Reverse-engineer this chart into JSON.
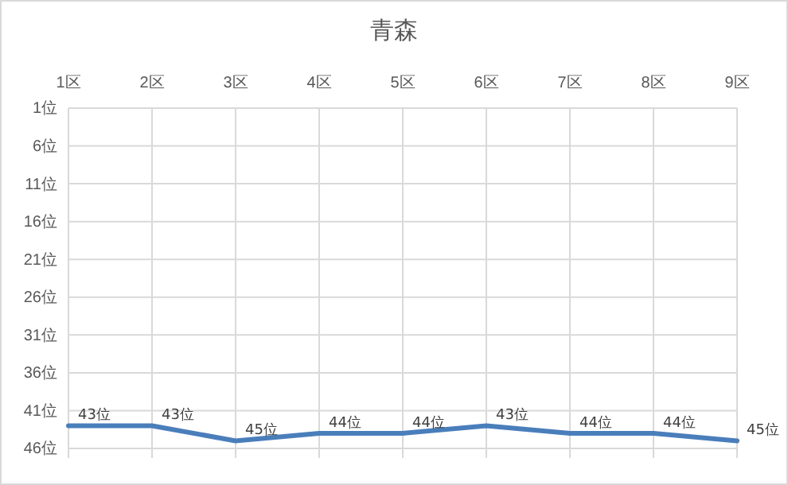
{
  "chart_data": {
    "type": "line",
    "title": "青森",
    "categories": [
      "1区",
      "2区",
      "3区",
      "4区",
      "5区",
      "6区",
      "7区",
      "8区",
      "9区"
    ],
    "series": [
      {
        "color": "#4a7ebb",
        "values": [
          43,
          43,
          45,
          44,
          44,
          43,
          44,
          44,
          45
        ],
        "value_labels": [
          "43位",
          "43位",
          "45位",
          "44位",
          "44位",
          "43位",
          "44位",
          "44位",
          "45位"
        ]
      }
    ],
    "ylim": [
      46,
      1
    ],
    "yticks": [
      {
        "value": 1,
        "label": "1位"
      },
      {
        "value": 6,
        "label": "6位"
      },
      {
        "value": 11,
        "label": "11位"
      },
      {
        "value": 16,
        "label": "16位"
      },
      {
        "value": 21,
        "label": "21位"
      },
      {
        "value": 26,
        "label": "26位"
      },
      {
        "value": 31,
        "label": "31位"
      },
      {
        "value": 36,
        "label": "36位"
      },
      {
        "value": 41,
        "label": "41位"
      },
      {
        "value": 46,
        "label": "46位"
      }
    ],
    "grid": true,
    "marker": "none",
    "line_style": "solid"
  }
}
